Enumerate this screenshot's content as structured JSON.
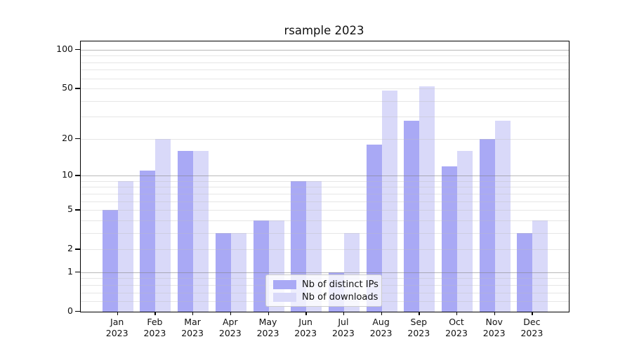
{
  "title": "rsample 2023",
  "year": "2023",
  "chart_data": {
    "type": "bar",
    "title": "rsample 2023",
    "xlabel": "",
    "ylabel": "",
    "yscale": "log1p",
    "ylim": [
      0,
      117
    ],
    "grid": "on",
    "legend_position": "lower center",
    "categories": [
      "Jan",
      "Feb",
      "Mar",
      "Apr",
      "May",
      "Jun",
      "Jul",
      "Aug",
      "Sep",
      "Oct",
      "Nov",
      "Dec"
    ],
    "x_tick_year": "2023",
    "series": [
      {
        "name": "Nb of distinct IPs",
        "color": "#a9a9f5",
        "values": [
          5,
          11,
          16,
          3,
          4,
          9,
          1,
          18,
          28,
          12,
          20,
          3
        ]
      },
      {
        "name": "Nb of downloads",
        "color": "#d9d9f9",
        "values": [
          9,
          20,
          16,
          3,
          4,
          9,
          3,
          48,
          52,
          16,
          28,
          4
        ]
      }
    ],
    "y_ticks": [
      100,
      50,
      20,
      10,
      5,
      2,
      1,
      0
    ],
    "y_major_gridlines": [
      1,
      10,
      100
    ],
    "y_minor_gridlines": [
      0.2,
      0.4,
      0.6,
      0.8,
      2,
      3,
      4,
      5,
      6,
      7,
      8,
      9,
      20,
      30,
      40,
      50,
      60,
      70,
      80,
      90
    ],
    "colors": {
      "major_grid": "rgba(128,128,128,0.55)",
      "minor_grid": "rgba(190,190,190,0.38)",
      "spine": "#000000",
      "text": "#111111"
    }
  }
}
